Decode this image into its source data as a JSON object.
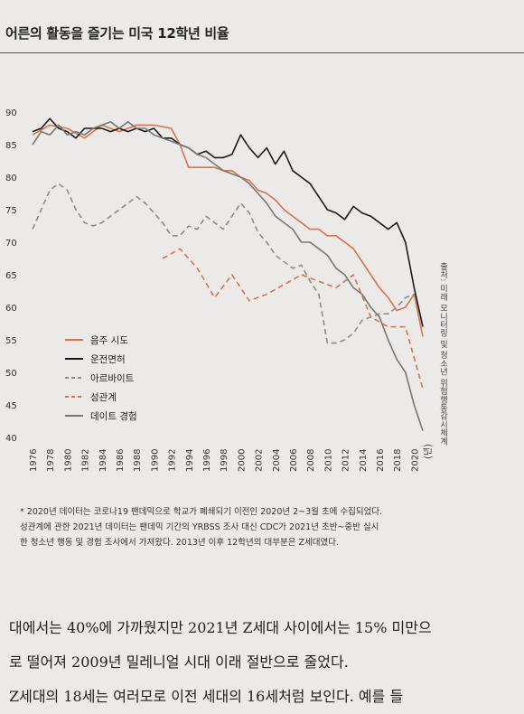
{
  "page": {
    "title": "어른의 활동을 즐기는 미국 12학년 비율",
    "source": "출처: 미래 모니터링 및 청소년 위험행동감시체계",
    "footnotes": [
      "* 2020년 데이터는 코로나19 팬데믹으로 학교가 폐쇄되기 이전인 2020년 2~3월 초에 수집되었다.",
      "성관계에 관한 2021년 데이터는 팬데믹 기간의 YRBSS 조사 대신 CDC가 2021년 초반~중반 실시",
      "한 청소년 행동 및 경험 조사에서 가져왔다. 2013년 이후 12학년의 대부분은 Z세대였다."
    ],
    "body": [
      "대에서는 40%에 가까웠지만 2021년 Z세대 사이에서는 15% 미만으",
      "로 떨어져 2009년 밀레니얼 시대 이래 절반으로 줄었다.",
      "Z세대의 18세는 여러모로 이전 세대의 16세처럼 보인다. 예를 들"
    ]
  },
  "chart_data": {
    "type": "line",
    "title": "어른의 활동을 즐기는 미국 12학년 비율",
    "xlabel": "(년)",
    "ylabel": "",
    "xlim": [
      1976,
      2021
    ],
    "ylim": [
      40,
      90
    ],
    "yticks": [
      40,
      45,
      50,
      55,
      60,
      65,
      70,
      75,
      80,
      85,
      90
    ],
    "xticks": [
      1976,
      1978,
      1980,
      1982,
      1984,
      1986,
      1988,
      1990,
      1992,
      1994,
      1996,
      1998,
      2000,
      2002,
      2004,
      2006,
      2008,
      2010,
      2012,
      2014,
      2016,
      2018,
      2020
    ],
    "x_unit_label": "(년)",
    "legend_position": "lower-left",
    "series": [
      {
        "name": "음주 시도",
        "color": "#d9734f",
        "style": "solid",
        "points": [
          [
            1976,
            86.5
          ],
          [
            1978,
            88
          ],
          [
            1980,
            87.5
          ],
          [
            1982,
            86
          ],
          [
            1984,
            88
          ],
          [
            1986,
            87
          ],
          [
            1988,
            88
          ],
          [
            1990,
            88
          ],
          [
            1992,
            87.5
          ],
          [
            1993,
            85
          ],
          [
            1994,
            81.5
          ],
          [
            1995,
            81.5
          ],
          [
            1996,
            81.5
          ],
          [
            1997,
            81.5
          ],
          [
            1998,
            81
          ],
          [
            1999,
            81
          ],
          [
            2000,
            80
          ],
          [
            2001,
            79.5
          ],
          [
            2002,
            78
          ],
          [
            2003,
            77.5
          ],
          [
            2004,
            76.5
          ],
          [
            2005,
            75
          ],
          [
            2006,
            74
          ],
          [
            2007,
            73
          ],
          [
            2008,
            72
          ],
          [
            2009,
            72
          ],
          [
            2010,
            71
          ],
          [
            2011,
            71
          ],
          [
            2012,
            70
          ],
          [
            2013,
            69
          ],
          [
            2014,
            67
          ],
          [
            2015,
            65
          ],
          [
            2016,
            63
          ],
          [
            2017,
            61.5
          ],
          [
            2018,
            59.5
          ],
          [
            2019,
            60
          ],
          [
            2020,
            62
          ],
          [
            2021,
            55.5
          ]
        ]
      },
      {
        "name": "운전면허",
        "color": "#1a1a1a",
        "style": "solid",
        "points": [
          [
            1976,
            87
          ],
          [
            1977,
            87.5
          ],
          [
            1978,
            89
          ],
          [
            1979,
            87.5
          ],
          [
            1980,
            87
          ],
          [
            1981,
            86
          ],
          [
            1982,
            87.5
          ],
          [
            1983,
            87.5
          ],
          [
            1984,
            87.5
          ],
          [
            1985,
            87
          ],
          [
            1986,
            87.5
          ],
          [
            1987,
            87
          ],
          [
            1988,
            87.5
          ],
          [
            1989,
            87
          ],
          [
            1990,
            87.5
          ],
          [
            1991,
            86
          ],
          [
            1992,
            86
          ],
          [
            1993,
            85
          ],
          [
            1994,
            84.5
          ],
          [
            1995,
            83.5
          ],
          [
            1996,
            84
          ],
          [
            1997,
            83
          ],
          [
            1998,
            83
          ],
          [
            1999,
            83.5
          ],
          [
            2000,
            86.5
          ],
          [
            2001,
            84.5
          ],
          [
            2002,
            83
          ],
          [
            2003,
            84.5
          ],
          [
            2004,
            82
          ],
          [
            2005,
            84
          ],
          [
            2006,
            81
          ],
          [
            2007,
            80
          ],
          [
            2008,
            79
          ],
          [
            2009,
            77
          ],
          [
            2010,
            75
          ],
          [
            2011,
            74.5
          ],
          [
            2012,
            73.5
          ],
          [
            2013,
            75.5
          ],
          [
            2014,
            74.5
          ],
          [
            2015,
            74
          ],
          [
            2016,
            73
          ],
          [
            2017,
            72
          ],
          [
            2018,
            73
          ],
          [
            2019,
            70
          ],
          [
            2020,
            63
          ],
          [
            2021,
            57
          ]
        ]
      },
      {
        "name": "아르바이트",
        "color": "#8c8c8c",
        "style": "dashed",
        "points": [
          [
            1976,
            72
          ],
          [
            1977,
            75
          ],
          [
            1978,
            78
          ],
          [
            1979,
            79
          ],
          [
            1980,
            78
          ],
          [
            1981,
            75
          ],
          [
            1982,
            73
          ],
          [
            1983,
            72.5
          ],
          [
            1984,
            73
          ],
          [
            1985,
            74
          ],
          [
            1986,
            75
          ],
          [
            1987,
            76
          ],
          [
            1988,
            77
          ],
          [
            1989,
            76
          ],
          [
            1990,
            74.5
          ],
          [
            1991,
            73
          ],
          [
            1992,
            71
          ],
          [
            1993,
            71
          ],
          [
            1994,
            72.5
          ],
          [
            1995,
            72
          ],
          [
            1996,
            74
          ],
          [
            1997,
            73
          ],
          [
            1998,
            72
          ],
          [
            1999,
            74
          ],
          [
            2000,
            76
          ],
          [
            2001,
            74.5
          ],
          [
            2002,
            71.5
          ],
          [
            2003,
            70
          ],
          [
            2004,
            68
          ],
          [
            2005,
            67
          ],
          [
            2006,
            66
          ],
          [
            2007,
            66.5
          ],
          [
            2008,
            64
          ],
          [
            2009,
            62
          ],
          [
            2010,
            54.5
          ],
          [
            2011,
            54.5
          ],
          [
            2012,
            55
          ],
          [
            2013,
            56
          ],
          [
            2014,
            58
          ],
          [
            2015,
            58.5
          ],
          [
            2016,
            59
          ],
          [
            2017,
            59
          ],
          [
            2018,
            60
          ],
          [
            2019,
            61.5
          ],
          [
            2020,
            62
          ]
        ]
      },
      {
        "name": "성관계",
        "color": "#d9734f",
        "style": "dashed",
        "points": [
          [
            1991,
            67.5
          ],
          [
            1993,
            69
          ],
          [
            1995,
            66
          ],
          [
            1997,
            61.5
          ],
          [
            1999,
            65
          ],
          [
            2001,
            61
          ],
          [
            2003,
            62
          ],
          [
            2005,
            63.5
          ],
          [
            2007,
            65
          ],
          [
            2009,
            64
          ],
          [
            2011,
            63
          ],
          [
            2013,
            65
          ],
          [
            2015,
            58.5
          ],
          [
            2017,
            57
          ],
          [
            2019,
            57
          ],
          [
            2021,
            47.5
          ]
        ]
      },
      {
        "name": "데이트 경험",
        "color": "#777777",
        "style": "solid",
        "points": [
          [
            1976,
            85
          ],
          [
            1977,
            87
          ],
          [
            1978,
            86.5
          ],
          [
            1979,
            88
          ],
          [
            1980,
            86.5
          ],
          [
            1981,
            87
          ],
          [
            1982,
            86.5
          ],
          [
            1983,
            87.5
          ],
          [
            1984,
            88
          ],
          [
            1985,
            88.5
          ],
          [
            1986,
            87.5
          ],
          [
            1987,
            88.5
          ],
          [
            1988,
            87.5
          ],
          [
            1989,
            87.5
          ],
          [
            1990,
            86.5
          ],
          [
            1991,
            86
          ],
          [
            1992,
            85.5
          ],
          [
            1993,
            85
          ],
          [
            1994,
            84.5
          ],
          [
            1995,
            83.5
          ],
          [
            1996,
            83
          ],
          [
            1997,
            82
          ],
          [
            1998,
            81
          ],
          [
            1999,
            80.5
          ],
          [
            2000,
            80
          ],
          [
            2001,
            79
          ],
          [
            2002,
            77.5
          ],
          [
            2003,
            76
          ],
          [
            2004,
            74
          ],
          [
            2005,
            73
          ],
          [
            2006,
            72
          ],
          [
            2007,
            70
          ],
          [
            2008,
            70
          ],
          [
            2009,
            69
          ],
          [
            2010,
            68
          ],
          [
            2011,
            66
          ],
          [
            2012,
            65
          ],
          [
            2013,
            63
          ],
          [
            2014,
            62
          ],
          [
            2015,
            60
          ],
          [
            2016,
            58.5
          ],
          [
            2017,
            55
          ],
          [
            2018,
            52
          ],
          [
            2019,
            50
          ],
          [
            2020,
            45
          ],
          [
            2021,
            41
          ]
        ]
      }
    ]
  }
}
